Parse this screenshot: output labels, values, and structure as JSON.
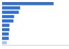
{
  "chart_data": {
    "type": "bar",
    "orientation": "horizontal",
    "categories": [
      null,
      null,
      null,
      null,
      null,
      null,
      null,
      null,
      null,
      null
    ],
    "values": [
      77,
      27,
      25,
      18,
      17,
      11,
      11,
      10,
      10,
      7
    ],
    "colors": [
      "#2f6fd6",
      "#2f6fd6",
      "#2f6fd6",
      "#2f6fd6",
      "#2f6fd6",
      "#2f6fd6",
      "#2f6fd6",
      "#2f6fd6",
      "#2f6fd6",
      "#a8c3ee"
    ],
    "xlim": [
      0,
      100
    ],
    "grid": false,
    "tick_labels": false
  }
}
